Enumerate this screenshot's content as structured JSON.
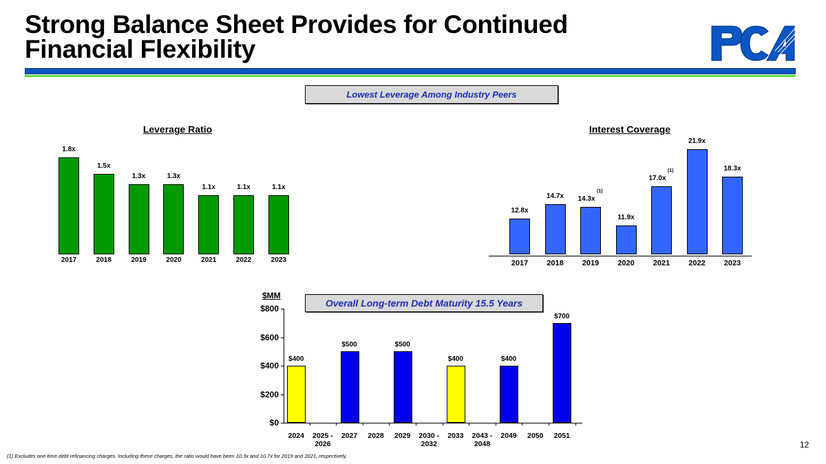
{
  "title": "Strong Balance Sheet Provides for Continued Financial Flexibility",
  "logo_text": "PCA",
  "colors": {
    "header_blue": "#0a56c2",
    "header_green": "#5ddc3a",
    "leverage_bar": "#009900",
    "coverage_bar": "#3366ff",
    "debt_blue": "#0000ee",
    "debt_yellow": "#ffff00",
    "callout_text": "#1c2fb0"
  },
  "callout_top": "Lowest Leverage Among Industry Peers",
  "callout_debt": "Overall Long-term Debt Maturity 15.5 Years",
  "footnote": "(1)  Excludes one-time debt refinancing charges.  Including these charges, the ratio would have been 10.3x and 10.7x for 2019 and 2021, respectively.",
  "page_number": "12",
  "chart_data": [
    {
      "type": "bar",
      "title": "Leverage Ratio",
      "categories": [
        "2017",
        "2018",
        "2019",
        "2020",
        "2021",
        "2022",
        "2023"
      ],
      "values": [
        1.8,
        1.5,
        1.3,
        1.3,
        1.1,
        1.1,
        1.1
      ],
      "labels": [
        "1.8x",
        "1.5x",
        "1.3x",
        "1.3x",
        "1.1x",
        "1.1x",
        "1.1x"
      ],
      "ylim": [
        0,
        1.8
      ]
    },
    {
      "type": "bar",
      "title": "Interest Coverage",
      "categories": [
        "2017",
        "2018",
        "2019",
        "2020",
        "2021",
        "2022",
        "2023"
      ],
      "values": [
        12.8,
        14.7,
        14.3,
        11.9,
        17.0,
        21.9,
        18.3
      ],
      "labels": [
        "12.8x",
        "14.7x",
        "14.3x",
        "11.9x",
        "17.0x",
        "21.9x",
        "18.3x"
      ],
      "footnote_marks": [
        "",
        "",
        "(1)",
        "",
        "(1)",
        "",
        ""
      ],
      "ylim": [
        8.1,
        21.9
      ]
    },
    {
      "type": "bar",
      "ylabel": "$MM",
      "categories": [
        "2024",
        "2025 - 2026",
        "2027",
        "2028",
        "2029",
        "2030 - 2032",
        "2033",
        "2043 - 2048",
        "2049",
        "2050",
        "2051"
      ],
      "values": [
        400,
        0,
        500,
        0,
        500,
        0,
        400,
        0,
        400,
        0,
        700
      ],
      "labels": [
        "$400",
        "",
        "$500",
        "",
        "$500",
        "",
        "$400",
        "",
        "$400",
        "",
        "$700"
      ],
      "bar_colors": [
        "yellow",
        "",
        "blue",
        "",
        "blue",
        "",
        "yellow",
        "",
        "blue",
        "",
        "blue"
      ],
      "yticks": [
        "$0",
        "$200",
        "$400",
        "$600",
        "$800"
      ],
      "ylim": [
        0,
        800
      ]
    }
  ]
}
